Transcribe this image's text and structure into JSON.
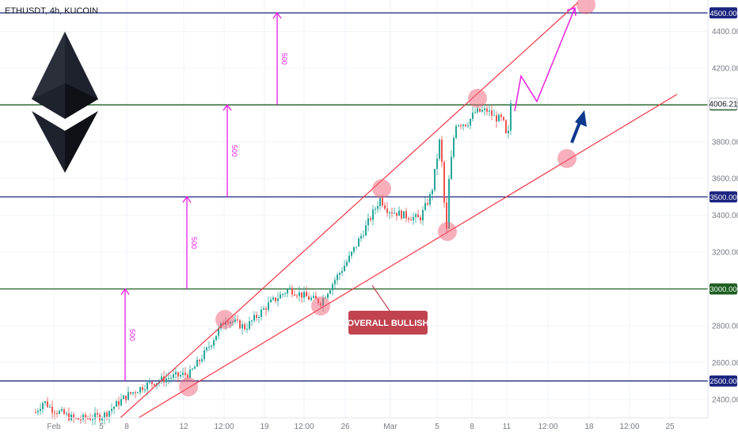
{
  "chart_data": {
    "type": "candlestick",
    "title": "ETHUSDT, 4h, KUCOIN",
    "ylim": [
      2300,
      4570
    ],
    "x_ticks": [
      "Feb",
      "5",
      "8",
      "12",
      "12:00",
      "19",
      "12:00",
      "26",
      "Mar",
      "5",
      "8",
      "11",
      "12:00",
      "18",
      "12:00",
      "25"
    ],
    "y_ticks": [
      2400,
      2600,
      2800,
      3000,
      3200,
      3400,
      3600,
      3800,
      4000,
      4200,
      4400
    ],
    "y_tick_labels": [
      "2400.00",
      "2600.00",
      "2800.00",
      "3000.00",
      "3200.00",
      "3400.00",
      "3600.00",
      "3800.00",
      "4000.00",
      "4200.00",
      "4400.00"
    ],
    "last_price": 4006.21,
    "last_price_label": "4006.21",
    "levels": [
      {
        "value": 4500,
        "label": "4500.00",
        "color": "#1a237e"
      },
      {
        "value": 4000,
        "label": "4000.00",
        "color": "#1b5e20"
      },
      {
        "value": 3500,
        "label": "3500.00",
        "color": "#1a237e"
      },
      {
        "value": 3000,
        "label": "3000.00",
        "color": "#1b5e20"
      },
      {
        "value": 2500,
        "label": "2500.00",
        "color": "#1a237e"
      }
    ],
    "distance_arrows": [
      {
        "label": "500",
        "from": 2500,
        "to": 3000
      },
      {
        "label": "500",
        "from": 3000,
        "to": 3500
      },
      {
        "label": "500",
        "from": 3500,
        "to": 4000
      },
      {
        "label": "500",
        "from": 4000,
        "to": 4500
      }
    ],
    "annotation": "OVERALL BULLISH",
    "colors": {
      "up": "#26a69a",
      "down": "#ef5350",
      "channel": "#f23645",
      "projection": "#e91ee3",
      "bull_arrow": "#0d3a8c"
    }
  }
}
